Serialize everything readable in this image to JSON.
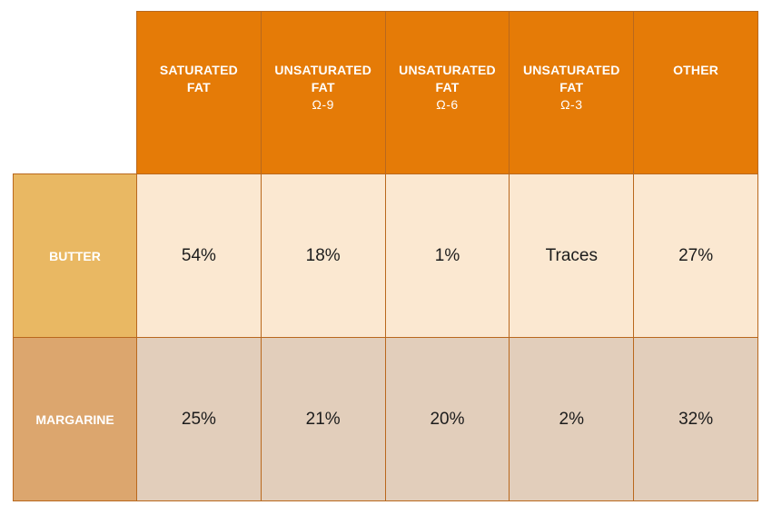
{
  "chart_data": {
    "type": "table",
    "columns": [
      {
        "label": "SATURATED",
        "label2": "FAT",
        "sub": ""
      },
      {
        "label": "UNSATURATED",
        "label2": "FAT",
        "sub": "Ω-9"
      },
      {
        "label": "UNSATURATED",
        "label2": "FAT",
        "sub": "Ω-6"
      },
      {
        "label": "UNSATURATED",
        "label2": "FAT",
        "sub": "Ω-3"
      },
      {
        "label": "OTHER",
        "label2": "",
        "sub": ""
      }
    ],
    "rows": [
      {
        "label": "BUTTER",
        "values": [
          "54%",
          "18%",
          "1%",
          "Traces",
          "27%"
        ]
      },
      {
        "label": "MARGARINE",
        "values": [
          "25%",
          "21%",
          "20%",
          "2%",
          "32%"
        ]
      }
    ]
  },
  "colors": {
    "header_fill": "#e57b07",
    "butter_label_fill": "#e9b863",
    "butter_cell_fill": "#fbe8d1",
    "margarine_label_fill": "#dca66e",
    "margarine_cell_fill": "#e2cebb",
    "border": "#b9681d"
  }
}
